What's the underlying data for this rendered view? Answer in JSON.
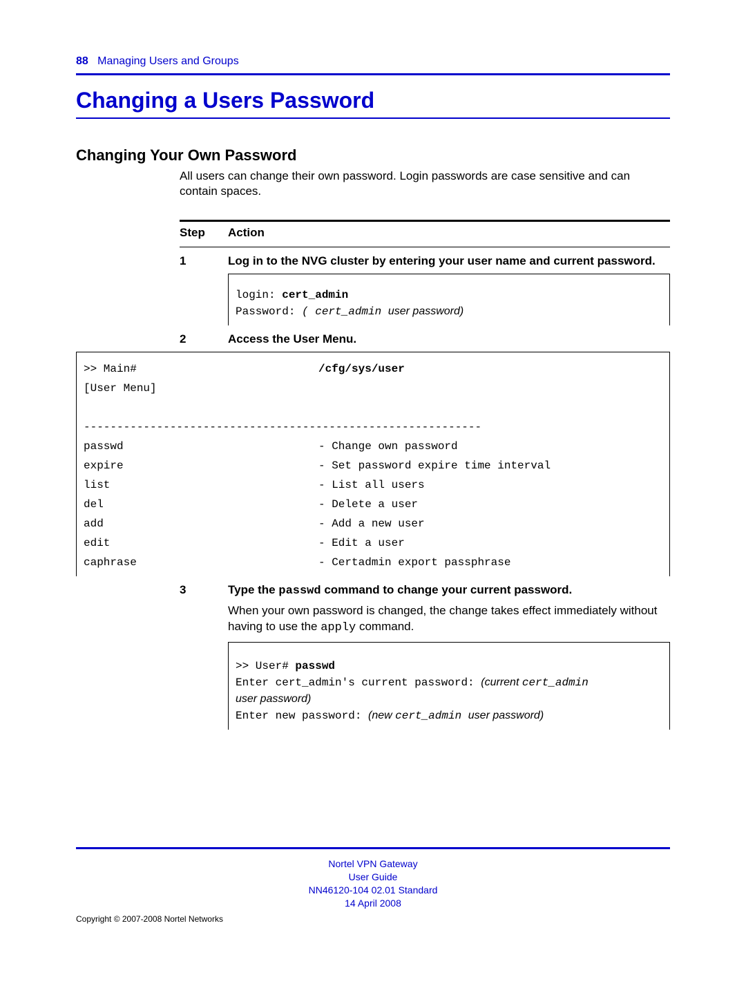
{
  "header": {
    "page_number": "88",
    "section_title": "Managing Users and Groups"
  },
  "h1": "Changing a Users Password",
  "h2": "Changing Your Own Password",
  "intro": "All users can change their own password. Login passwords are case sensitive and can contain spaces.",
  "table_header": {
    "step": "Step",
    "action": "Action"
  },
  "steps": {
    "s1": {
      "num": "1",
      "action": "Log in to the NVG cluster by entering your user name and current password.",
      "code": {
        "login_label": "login: ",
        "login_value": "cert_admin",
        "pwd_label": "Password: ",
        "pwd_value_mono": "( cert_admin ",
        "pwd_value_italic": "user password)"
      }
    },
    "s2": {
      "num": "2",
      "action": "Access the User Menu.",
      "code": {
        "prompt": ">> Main#",
        "cmd": "/cfg/sys/user",
        "menu_title": "[User Menu]",
        "sep": "------------------------------------------------------------",
        "rows": [
          {
            "cmd": "passwd",
            "desc": "- Change own password"
          },
          {
            "cmd": "expire",
            "desc": "- Set password expire time interval"
          },
          {
            "cmd": "list",
            "desc": "- List all users"
          },
          {
            "cmd": "del",
            "desc": "- Delete a user"
          },
          {
            "cmd": "add",
            "desc": "- Add a new user"
          },
          {
            "cmd": "edit",
            "desc": "- Edit a user"
          },
          {
            "cmd": "caphrase",
            "desc": "- Certadmin export passphrase"
          }
        ]
      }
    },
    "s3": {
      "num": "3",
      "action_pre": "Type the ",
      "action_mono": "passwd",
      "action_post": " command to change your current password.",
      "body_pre": "When your own password is changed, the change takes effect immediately without having to use the ",
      "body_mono": "apply",
      "body_post": " command.",
      "code": {
        "l1_a": ">> User# ",
        "l1_b": "passwd",
        "l2_a": "Enter cert_admin's current password: ",
        "l2_b": "(current ",
        "l2_c": "cert_admin ",
        "l2_d": "user password)",
        "l3_a": "Enter new password: ",
        "l3_b": "(new ",
        "l3_c": "cert_admin ",
        "l3_d": "user password)"
      }
    }
  },
  "footer": {
    "l1": "Nortel VPN Gateway",
    "l2": "User Guide",
    "l3": "NN46120-104   02.01   Standard",
    "l4": "14 April 2008",
    "copyright": "Copyright © 2007-2008 Nortel Networks"
  }
}
